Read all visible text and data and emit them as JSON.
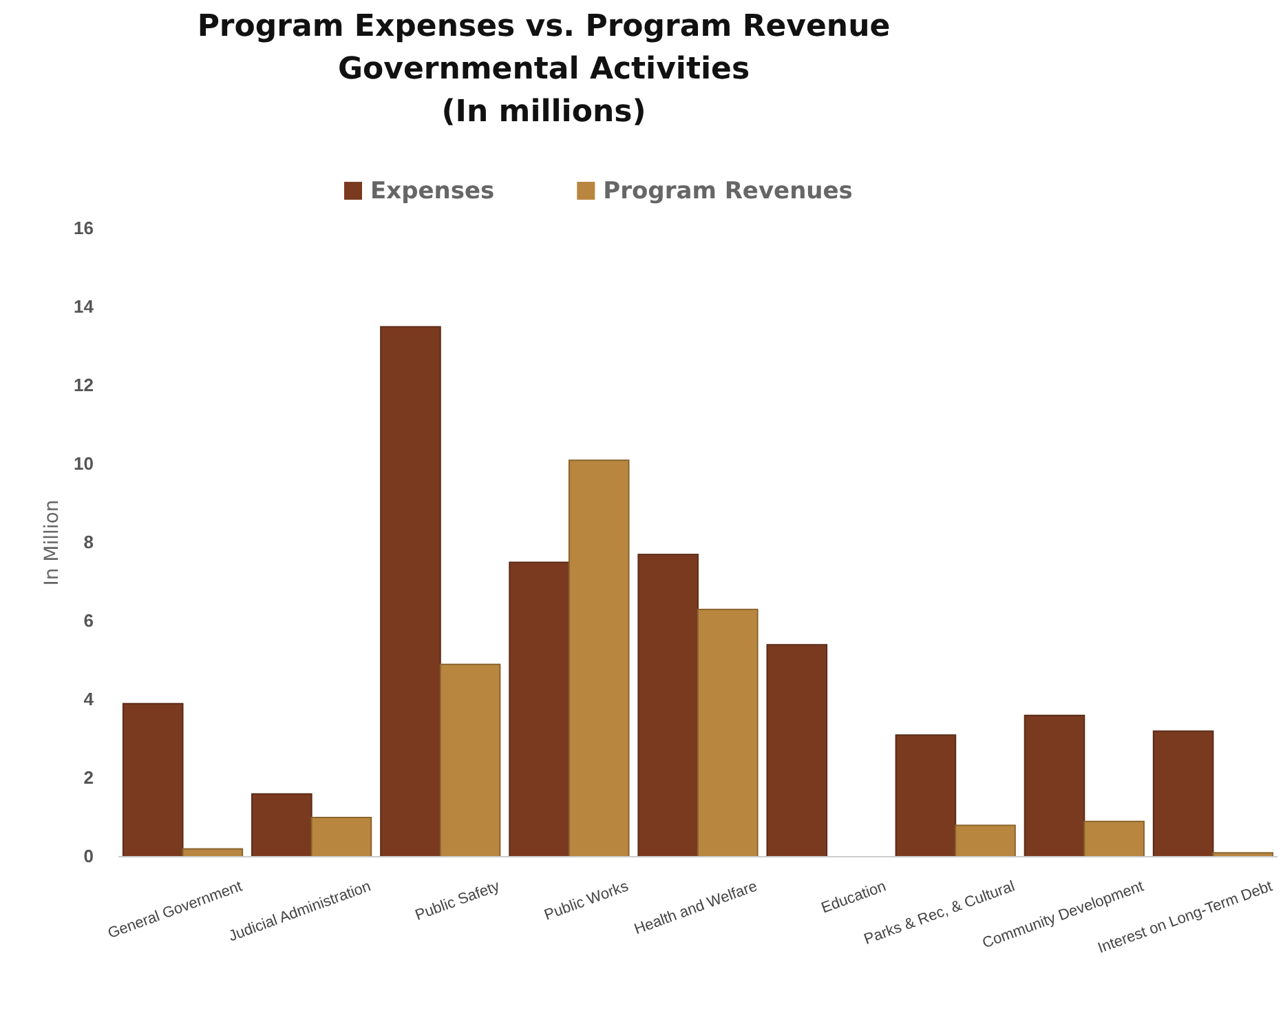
{
  "chart_data": {
    "type": "bar",
    "title": "Program Expenses vs. Program Revenue\nGovernmental Activities\n(In millions)",
    "ylabel": "In Million",
    "categories": [
      "General Government",
      "Judicial Administration",
      "Public Safety",
      "Public Works",
      "Health and Welfare",
      "Education",
      "Parks & Rec, & Cultural",
      "Community Development",
      "Interest on Long-Term Debt"
    ],
    "series": [
      {
        "name": "Expenses",
        "color": "#7a3a20",
        "values": [
          3.9,
          1.6,
          13.5,
          7.5,
          7.7,
          5.4,
          3.1,
          3.6,
          3.2
        ]
      },
      {
        "name": "Program Revenues",
        "color": "#b8863f",
        "values": [
          0.2,
          1.0,
          4.9,
          10.1,
          6.3,
          0,
          0.8,
          0.9,
          0.1
        ]
      }
    ],
    "ylim": [
      0,
      16
    ],
    "yticks": [
      0,
      2,
      4,
      6,
      8,
      10,
      12,
      14,
      16
    ],
    "grid": false,
    "legend": "top"
  }
}
